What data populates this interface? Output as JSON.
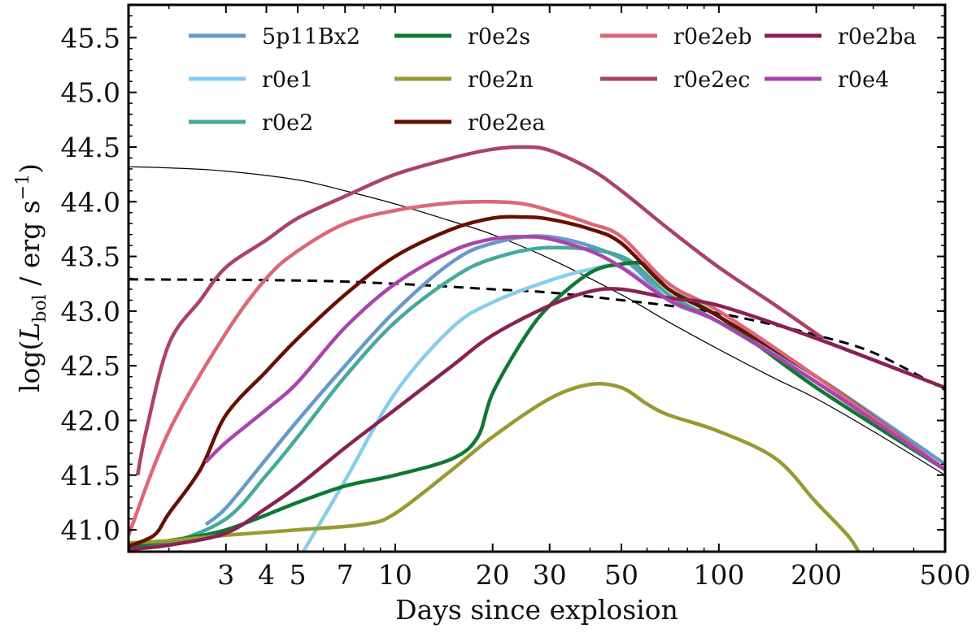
{
  "chart_data": {
    "type": "line",
    "x_scale": "log",
    "xlim": [
      1.5,
      500
    ],
    "ylim": [
      40.8,
      45.8
    ],
    "xlabel": "Days since explosion",
    "ylabel": "log(L_bol / erg s^-1)",
    "ylabel_parts": {
      "pre": "log(",
      "L": "L",
      "sub": "bol",
      "mid": " / erg s",
      "sup": "−1",
      "post": ")"
    },
    "x_ticks": [
      3,
      4,
      5,
      7,
      10,
      20,
      30,
      50,
      100,
      200,
      500
    ],
    "x_tick_labels": [
      "3",
      "4",
      "5",
      "7",
      "10",
      "20",
      "30",
      "50",
      "100",
      "200",
      "500"
    ],
    "y_ticks": [
      41.0,
      41.5,
      42.0,
      42.5,
      43.0,
      43.5,
      44.0,
      44.5,
      45.0,
      45.5
    ],
    "y_tick_labels": [
      "41.0",
      "41.5",
      "42.0",
      "42.5",
      "43.0",
      "43.5",
      "44.0",
      "44.5",
      "45.0",
      "45.5"
    ],
    "legend": {
      "location": "top",
      "columns": 4,
      "entries": [
        "5p11Bx2",
        "r0e2s",
        "r0e2eb",
        "r0e2ba",
        "r0e1",
        "r0e2n",
        "r0e2ec",
        "r0e4",
        "r0e2",
        "r0e2ea"
      ]
    },
    "series": [
      {
        "name": "5p11Bx2",
        "color": "#6699cc",
        "x": [
          2.6,
          3,
          4,
          5,
          7,
          10,
          15,
          20,
          30,
          50,
          70,
          100,
          200,
          500
        ],
        "y": [
          41.05,
          41.2,
          41.65,
          42.0,
          42.5,
          43.0,
          43.45,
          43.62,
          43.68,
          43.48,
          43.1,
          42.9,
          42.4,
          41.6
        ]
      },
      {
        "name": "r0e1",
        "color": "#88ccee",
        "x": [
          5.2,
          7,
          10,
          15,
          20,
          30,
          40,
          50,
          70,
          100,
          200,
          500
        ],
        "y": [
          40.8,
          41.45,
          42.25,
          42.85,
          43.08,
          43.28,
          43.38,
          43.4,
          43.1,
          42.9,
          42.35,
          41.55
        ]
      },
      {
        "name": "r0e2",
        "color": "#44aa99",
        "x": [
          1.5,
          2,
          3,
          4,
          5,
          7,
          10,
          15,
          20,
          30,
          50,
          70,
          100,
          200,
          500
        ],
        "y": [
          40.85,
          40.88,
          41.1,
          41.5,
          41.85,
          42.4,
          42.9,
          43.3,
          43.48,
          43.58,
          43.5,
          43.15,
          42.9,
          42.35,
          41.55
        ]
      },
      {
        "name": "r0e2s",
        "color": "#117733",
        "x": [
          1.5,
          2,
          3,
          5,
          7,
          10,
          15,
          18,
          20,
          25,
          30,
          40,
          50,
          60,
          70,
          100,
          200,
          500
        ],
        "y": [
          40.85,
          40.9,
          41.0,
          41.25,
          41.4,
          41.5,
          41.65,
          41.85,
          42.25,
          42.75,
          43.05,
          43.35,
          43.43,
          43.42,
          43.2,
          42.95,
          42.3,
          41.55
        ]
      },
      {
        "name": "r0e2n",
        "color": "#999933",
        "x": [
          1.5,
          2,
          3,
          5,
          8,
          10,
          15,
          20,
          30,
          40,
          50,
          60,
          70,
          100,
          150,
          200,
          250,
          270
        ],
        "y": [
          40.88,
          40.9,
          40.95,
          41.0,
          41.05,
          41.15,
          41.55,
          41.85,
          42.2,
          42.33,
          42.3,
          42.15,
          42.05,
          41.9,
          41.65,
          41.25,
          40.95,
          40.8
        ]
      },
      {
        "name": "r0e2ea",
        "color": "#661100",
        "x": [
          1.5,
          1.8,
          2,
          2.5,
          3,
          4,
          5,
          7,
          10,
          15,
          20,
          25,
          30,
          40,
          50,
          70,
          100,
          200,
          500
        ],
        "y": [
          40.85,
          40.95,
          41.15,
          41.55,
          42.05,
          42.45,
          42.75,
          43.15,
          43.5,
          43.75,
          43.85,
          43.86,
          43.84,
          43.75,
          43.62,
          43.2,
          42.95,
          42.4,
          41.55
        ]
      },
      {
        "name": "r0e2eb",
        "color": "#dd6677",
        "x": [
          1.5,
          2,
          3,
          4,
          5,
          7,
          10,
          15,
          20,
          25,
          30,
          40,
          50,
          70,
          100,
          200,
          500
        ],
        "y": [
          40.95,
          41.9,
          42.8,
          43.3,
          43.55,
          43.8,
          43.92,
          43.99,
          44.0,
          43.98,
          43.92,
          43.8,
          43.68,
          43.25,
          43.0,
          42.4,
          41.55
        ]
      },
      {
        "name": "r0e2ec",
        "color": "#aa4466",
        "x": [
          1.6,
          1.7,
          2,
          2.5,
          3,
          4,
          5,
          7,
          10,
          15,
          20,
          25,
          30,
          40,
          50,
          70,
          100,
          150,
          210
        ],
        "y": [
          41.5,
          41.9,
          42.7,
          43.1,
          43.4,
          43.65,
          43.85,
          44.05,
          44.25,
          44.4,
          44.48,
          44.5,
          44.47,
          44.3,
          44.1,
          43.75,
          43.4,
          43.05,
          42.75
        ]
      },
      {
        "name": "r0e2ba",
        "color": "#882255",
        "x": [
          1.5,
          2,
          3,
          4,
          5,
          7,
          10,
          15,
          20,
          30,
          40,
          50,
          70,
          100,
          200,
          500
        ],
        "y": [
          40.82,
          40.86,
          40.97,
          41.2,
          41.4,
          41.75,
          42.1,
          42.5,
          42.78,
          43.05,
          43.18,
          43.2,
          43.12,
          43.05,
          42.75,
          42.3
        ]
      },
      {
        "name": "r0e4",
        "color": "#aa44aa",
        "x": [
          2.6,
          3,
          4,
          5,
          7,
          10,
          15,
          20,
          25,
          30,
          40,
          50,
          70,
          100,
          200,
          500
        ],
        "y": [
          41.62,
          41.8,
          42.1,
          42.35,
          42.85,
          43.25,
          43.55,
          43.66,
          43.68,
          43.66,
          43.55,
          43.4,
          43.1,
          42.9,
          42.35,
          41.55
        ]
      }
    ],
    "reference_lines": [
      {
        "name": "thin-solid-reference",
        "style": "solid",
        "color": "#000000",
        "x": [
          1.5,
          2,
          3,
          5,
          7,
          10,
          15,
          20,
          30,
          50,
          70,
          100,
          150,
          200,
          300,
          500
        ],
        "y": [
          44.32,
          44.31,
          44.28,
          44.2,
          44.1,
          43.98,
          43.82,
          43.7,
          43.48,
          43.15,
          42.9,
          42.65,
          42.38,
          42.2,
          41.9,
          41.5
        ]
      },
      {
        "name": "dashed-reference",
        "style": "dashed",
        "color": "#000000",
        "x": [
          1.5,
          5,
          10,
          20,
          30,
          50,
          70,
          100,
          150,
          200,
          300,
          500
        ],
        "y": [
          43.29,
          43.28,
          43.25,
          43.2,
          43.17,
          43.1,
          43.05,
          42.98,
          42.87,
          42.78,
          42.62,
          42.28
        ]
      }
    ]
  }
}
